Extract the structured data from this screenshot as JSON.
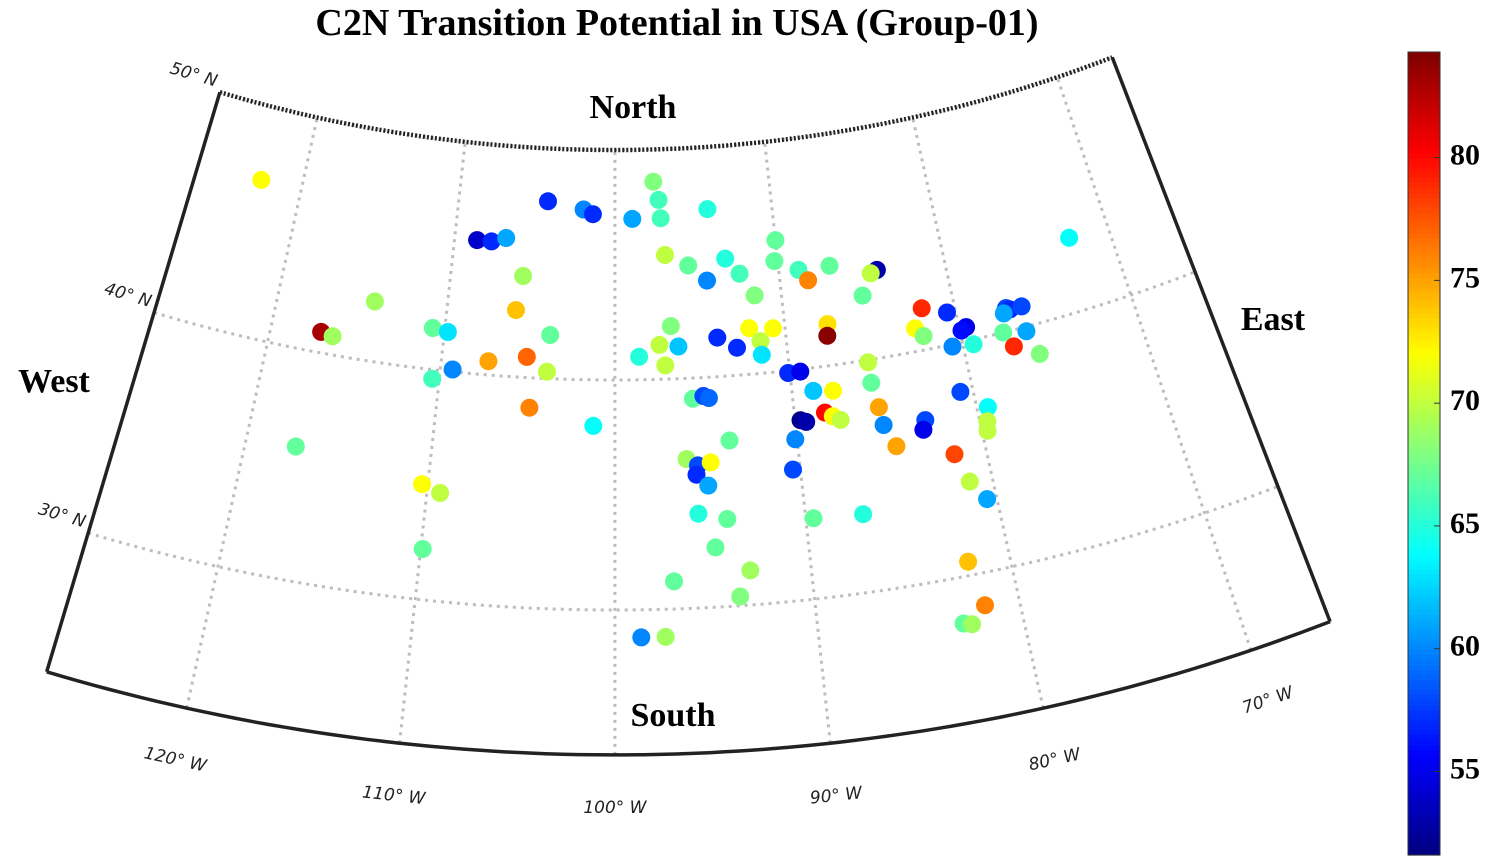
{
  "chart_data": {
    "type": "scatter",
    "title": "C2N Transition Potential in USA (Group-01)",
    "labels": {
      "north": "North",
      "south": "South",
      "east": "East",
      "west": "West"
    },
    "projection": "conic",
    "xlim": [
      -126.7,
      -66.1
    ],
    "ylim": [
      23.7,
      50
    ],
    "xticks": [
      {
        "value": -120,
        "label": "120° W"
      },
      {
        "value": -110,
        "label": "110° W"
      },
      {
        "value": -100,
        "label": "100° W"
      },
      {
        "value": -90,
        "label": "90° W"
      },
      {
        "value": -80,
        "label": "80° W"
      },
      {
        "value": -70,
        "label": "70° W"
      }
    ],
    "yticks": [
      {
        "value": 30,
        "label": "30° N"
      },
      {
        "value": 40,
        "label": "40° N"
      },
      {
        "value": 50,
        "label": "50° N"
      }
    ],
    "grid": true,
    "colormap": "jet",
    "clim": [
      51.6,
      84.3
    ],
    "cticks": [
      55,
      60,
      65,
      70,
      75,
      80
    ],
    "x": [
      -122.6,
      -117.1,
      -116.4,
      -114.3,
      -117.3,
      -110.7,
      -109.8,
      -110.4,
      -109.3,
      -110.3,
      -109.3,
      -109.9,
      -108.6,
      -107.7,
      -106.8,
      -104.3,
      -105.6,
      -105.9,
      -107.3,
      -105.1,
      -103.8,
      -103.9,
      -104.8,
      -101.2,
      -102.0,
      -101.4,
      -98.9,
      -97.5,
      -97.2,
      -97.1,
      -94.1,
      -96.9,
      -95.5,
      -94.4,
      -93.2,
      -92.4,
      -91.6,
      -90.0,
      -90.2,
      -88.8,
      -86.9,
      -88.3,
      -84.1,
      -84.5,
      -85.2,
      -96.7,
      -98.6,
      -97.4,
      -96.3,
      -97.1,
      -94.0,
      -92.9,
      -92.1,
      -91.5,
      -91.5,
      -90.7,
      -87.5,
      -87.6,
      -85.5,
      -90.1,
      -89.4,
      -88.8,
      -87.7,
      -85.5,
      -95.6,
      -95.0,
      -94.7,
      -89.7,
      -89.4,
      -88.3,
      -87.9,
      -87.5,
      -85.3,
      -85.2,
      -90.1,
      -90.4,
      -84.7,
      -81.9,
      -82.5,
      -82.1,
      -80.5,
      -79.6,
      -79.9,
      -80.6,
      -79.4,
      -77.1,
      -76.9,
      -76.2,
      -77.3,
      -76.3,
      -77.6,
      -77.2,
      -75.9,
      -72.4,
      -80.7,
      -79.4,
      -79.6,
      -79.7,
      -82.9,
      -83.1,
      -81.7,
      -81.2,
      -80.5,
      -82.1,
      -81.7,
      -82.9,
      -82.5,
      -93.7,
      -96.1,
      -95.5,
      -95.6,
      -94.8,
      -95.0,
      -95.6,
      -94.1,
      -94.8,
      -93.1,
      -93.7,
      -97.0,
      -98.7,
      -97.5,
      -89.6,
      -87.0
    ],
    "y": [
      46.8,
      40.9,
      40.8,
      42.6,
      35.8,
      41.8,
      41.7,
      39.6,
      40.1,
      35.0,
      34.7,
      32.2,
      45.8,
      45.8,
      46.0,
      47.7,
      44.4,
      42.9,
      40.6,
      40.9,
      41.9,
      40.3,
      38.7,
      38.0,
      47.4,
      47.2,
      47.0,
      48.6,
      47.8,
      47.0,
      47.3,
      45.4,
      44.9,
      44.2,
      45.1,
      44.4,
      43.4,
      45.7,
      44.8,
      44.3,
      44.3,
      43.8,
      43.8,
      43.7,
      42.8,
      42.3,
      41.0,
      41.5,
      41.4,
      40.6,
      41.7,
      41.2,
      42.0,
      41.4,
      40.8,
      41.9,
      41.8,
      41.3,
      39.9,
      39.9,
      39.9,
      39.0,
      38.9,
      39.0,
      39.1,
      39.2,
      39.1,
      37.8,
      37.7,
      38.0,
      37.8,
      37.6,
      37.9,
      37.1,
      37.0,
      35.7,
      36.1,
      41.8,
      41.0,
      40.6,
      41.4,
      40.6,
      40.5,
      39.9,
      39.8,
      41.0,
      40.9,
      40.9,
      40.8,
      39.8,
      40.0,
      39.3,
      38.7,
      43.2,
      37.9,
      37.0,
      36.4,
      36.0,
      37.0,
      36.6,
      35.3,
      34.0,
      33.1,
      30.6,
      28.6,
      28.0,
      27.9,
      37.2,
      36.5,
      36.2,
      35.8,
      36.3,
      35.3,
      34.1,
      33.8,
      32.6,
      31.5,
      30.4,
      31.2,
      28.8,
      28.8,
      33.5,
      33.4
    ],
    "values": [
      72,
      83,
      69,
      69,
      67,
      67,
      63,
      66,
      60,
      72,
      70,
      67,
      54,
      57,
      61,
      57,
      69,
      74,
      75,
      77,
      67,
      70,
      76,
      64,
      60,
      57,
      61,
      68,
      66,
      66,
      65,
      70,
      67,
      60,
      65,
      66,
      68,
      67,
      67,
      66,
      67,
      76,
      53,
      70,
      67,
      68,
      65,
      70,
      62,
      70,
      57,
      57,
      72,
      70,
      63,
      72,
      73,
      84,
      70,
      57,
      55,
      62,
      72,
      67,
      67,
      58,
      59,
      52,
      53,
      80,
      72,
      70,
      75,
      60,
      60,
      58,
      75,
      79,
      72,
      68,
      57,
      55,
      56,
      60,
      65,
      58,
      57,
      58,
      61,
      61,
      67,
      79,
      68,
      64,
      58,
      64,
      70,
      70,
      58,
      55,
      78,
      70,
      61,
      74,
      76,
      67,
      69,
      67,
      69,
      58,
      57,
      72,
      61,
      65,
      67,
      67,
      69,
      68,
      67,
      60,
      69,
      67,
      65
    ]
  }
}
